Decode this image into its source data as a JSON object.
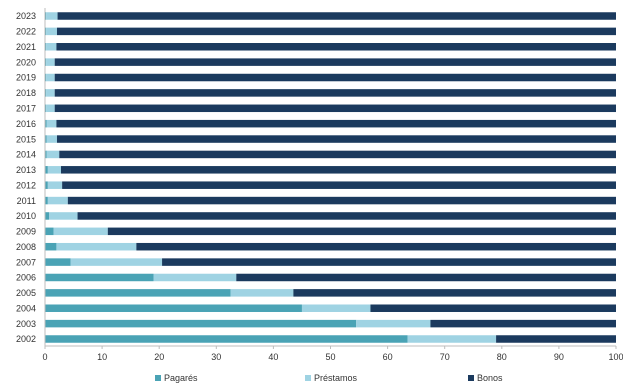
{
  "chart_data": {
    "type": "bar",
    "orientation": "horizontal",
    "stacked": true,
    "title": "",
    "xlabel": "",
    "ylabel": "",
    "xlim": [
      0,
      100
    ],
    "xticks": [
      0,
      10,
      20,
      30,
      40,
      50,
      60,
      70,
      80,
      90,
      100
    ],
    "grid": false,
    "legend_position": "bottom",
    "categories": [
      "2002",
      "2003",
      "2004",
      "2005",
      "2006",
      "2007",
      "2008",
      "2009",
      "2010",
      "2011",
      "2012",
      "2013",
      "2014",
      "2015",
      "2016",
      "2017",
      "2018",
      "2019",
      "2020",
      "2021",
      "2022",
      "2023"
    ],
    "series": [
      {
        "name": "Pagarés",
        "color": "#4aa3b5",
        "values": [
          63.5,
          54.5,
          45,
          32.5,
          19,
          4.5,
          2,
          1.5,
          0.7,
          0.5,
          0.5,
          0.5,
          0.3,
          0.3,
          0.3,
          0.2,
          0.2,
          0.2,
          0.2,
          0.2,
          0.2,
          0.2
        ]
      },
      {
        "name": "Préstamos",
        "color": "#9fd3e3",
        "values": [
          15.5,
          13,
          12,
          11,
          14.5,
          16,
          14,
          9.5,
          5,
          3.5,
          2.5,
          2.3,
          2.2,
          1.8,
          1.7,
          1.5,
          1.5,
          1.5,
          1.5,
          1.8,
          1.9,
          2
        ]
      },
      {
        "name": "Bonos",
        "color": "#1b3a5e",
        "values": [
          21,
          32.5,
          43,
          56.5,
          66.5,
          79.5,
          84,
          89,
          94.3,
          96,
          97,
          97.2,
          97.5,
          97.9,
          98,
          98.3,
          98.3,
          98.3,
          98.3,
          98,
          97.9,
          97.8
        ]
      }
    ]
  }
}
